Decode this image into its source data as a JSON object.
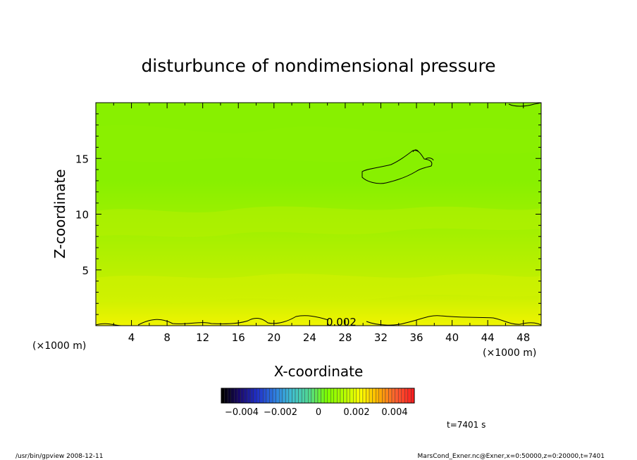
{
  "chart_data": {
    "type": "heatmap",
    "title": "disturbunce of nondimensional pressure",
    "xlabel": "X-coordinate",
    "ylabel": "Z-coordinate",
    "x_unit": "(×1000 m)",
    "y_unit": "(×1000 m)",
    "xlim": [
      0,
      50
    ],
    "ylim": [
      0,
      20
    ],
    "x_ticks": [
      "4",
      "8",
      "12",
      "16",
      "20",
      "24",
      "28",
      "32",
      "36",
      "40",
      "44",
      "48"
    ],
    "y_ticks": [
      "5",
      "10",
      "15"
    ],
    "contour_label": "0.002",
    "colorbar": {
      "range": [
        -0.005,
        0.005
      ],
      "tick_labels": [
        "−0.004",
        "−0.002",
        "0",
        "0.002",
        "0.004"
      ],
      "colors": [
        "#000000",
        "#1a0a6e",
        "#2030c8",
        "#2d7be0",
        "#40c0d0",
        "#50d890",
        "#7cff00",
        "#b4ff00",
        "#ffff00",
        "#ffb000",
        "#ff6030",
        "#ff2020"
      ]
    },
    "field_colors": {
      "upper": "#88f000",
      "middle": "#a6f000",
      "lower": "#c8f000",
      "bottom": "#f0f400"
    },
    "time_label": "t=7401 s",
    "footer_left": "/usr/bin/gpview   2008-12-11",
    "footer_right": "MarsCond_Exner.nc@Exner,x=0:50000,z=0:20000,t=7401"
  }
}
